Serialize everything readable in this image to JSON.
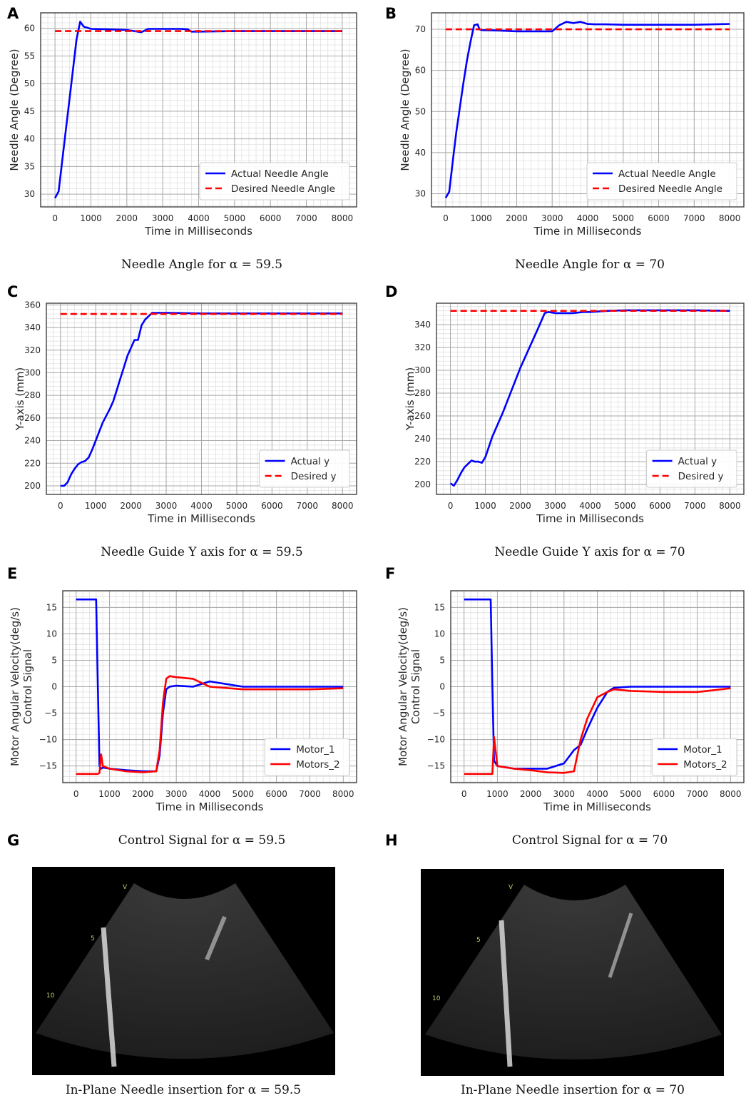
{
  "chart_data": [
    {
      "type": "line",
      "letter": "A",
      "caption": "Needle Angle for α = 59.5",
      "xlabel": "Time in Milliseconds",
      "ylabel": "Needle Angle (Degree)",
      "x": [
        0,
        100,
        200,
        300,
        400,
        500,
        600,
        700,
        800,
        900,
        1000,
        1500,
        2000,
        2400,
        2600,
        3000,
        3500,
        3700,
        3800,
        4000,
        5000,
        6000,
        7000,
        8000
      ],
      "series": [
        {
          "name": "Actual Needle Angle",
          "color": "#0000ff",
          "linestyle": "solid",
          "values": [
            29.3,
            30.5,
            36,
            41.5,
            47,
            52.5,
            58,
            61.2,
            60.3,
            60.1,
            59.9,
            59.8,
            59.7,
            59.3,
            59.9,
            59.9,
            59.9,
            59.8,
            59.4,
            59.4,
            59.5,
            59.5,
            59.5,
            59.5
          ]
        },
        {
          "name": "Desired Needle Angle",
          "color": "#ff0000",
          "linestyle": "dashed",
          "values": [
            59.5,
            59.5,
            59.5,
            59.5,
            59.5,
            59.5,
            59.5,
            59.5,
            59.5,
            59.5,
            59.5,
            59.5,
            59.5,
            59.5,
            59.5,
            59.5,
            59.5,
            59.5,
            59.5,
            59.5,
            59.5,
            59.5,
            59.5,
            59.5
          ]
        }
      ],
      "xlim": [
        -400,
        8400
      ],
      "xticks": [
        0,
        1000,
        2000,
        3000,
        4000,
        5000,
        6000,
        7000,
        8000
      ],
      "ylim": [
        27.7,
        62.8
      ],
      "yticks": [
        30,
        35,
        40,
        45,
        50,
        55,
        60
      ],
      "grid": true,
      "minor_divisions": 5,
      "legend": "lower right"
    },
    {
      "type": "line",
      "letter": "B",
      "caption": "Needle Angle for α = 70",
      "xlabel": "Time in Milliseconds",
      "ylabel": "Needle Angle (Degree)",
      "x": [
        0,
        100,
        200,
        300,
        400,
        500,
        600,
        700,
        800,
        900,
        950,
        1000,
        1500,
        2000,
        2500,
        3000,
        3200,
        3400,
        3600,
        3800,
        4000,
        4200,
        4500,
        5000,
        6000,
        7000,
        8000
      ],
      "series": [
        {
          "name": "Actual Needle Angle",
          "color": "#0000ff",
          "linestyle": "solid",
          "values": [
            29,
            30.5,
            38,
            45,
            51,
            57,
            62.5,
            67,
            71,
            71.2,
            70,
            69.8,
            69.7,
            69.5,
            69.5,
            69.5,
            71,
            71.8,
            71.5,
            71.8,
            71.3,
            71.2,
            71.2,
            71.1,
            71.1,
            71.1,
            71.3
          ]
        },
        {
          "name": "Desired Needle Angle",
          "color": "#ff0000",
          "linestyle": "dashed",
          "values": [
            70,
            70,
            70,
            70,
            70,
            70,
            70,
            70,
            70,
            70,
            70,
            70,
            70,
            70,
            70,
            70,
            70,
            70,
            70,
            70,
            70,
            70,
            70,
            70,
            70,
            70,
            70
          ]
        }
      ],
      "xlim": [
        -400,
        8400
      ],
      "xticks": [
        0,
        1000,
        2000,
        3000,
        4000,
        5000,
        6000,
        7000,
        8000
      ],
      "ylim": [
        26.8,
        74
      ],
      "yticks": [
        30,
        40,
        50,
        60,
        70
      ],
      "grid": true,
      "minor_divisions": 5,
      "legend": "lower right"
    },
    {
      "type": "line",
      "letter": "C",
      "caption": "Needle Guide Y axis for α = 59.5",
      "xlabel": "Time in Milliseconds",
      "ylabel": "Y-axis (mm)",
      "x": [
        0,
        100,
        200,
        300,
        400,
        500,
        600,
        700,
        800,
        900,
        1000,
        1200,
        1400,
        1500,
        1600,
        1700,
        1800,
        1900,
        2000,
        2100,
        2200,
        2300,
        2400,
        2500,
        2600,
        2700,
        3000,
        4000,
        5000,
        6000,
        7000,
        8000
      ],
      "series": [
        {
          "name": "Actual y",
          "color": "#0000ff",
          "linestyle": "solid",
          "values": [
            200,
            200,
            203,
            210,
            215,
            219,
            221,
            222,
            225,
            232,
            240,
            256,
            268,
            275,
            285,
            295,
            305,
            315,
            322,
            329,
            329,
            342,
            347,
            350,
            353,
            353,
            353,
            352.5,
            352.5,
            352.5,
            352.5,
            352.5
          ]
        },
        {
          "name": "Desired y",
          "color": "#ff0000",
          "linestyle": "dashed",
          "values": [
            352,
            352,
            352,
            352,
            352,
            352,
            352,
            352,
            352,
            352,
            352,
            352,
            352,
            352,
            352,
            352,
            352,
            352,
            352,
            352,
            352,
            352,
            352,
            352,
            352,
            352,
            352,
            352,
            352,
            352,
            352,
            352
          ]
        }
      ],
      "xlim": [
        -400,
        8400
      ],
      "xticks": [
        0,
        1000,
        2000,
        3000,
        4000,
        5000,
        6000,
        7000,
        8000
      ],
      "ylim": [
        192.4,
        361.5
      ],
      "yticks": [
        200,
        220,
        240,
        260,
        280,
        300,
        320,
        340,
        360
      ],
      "grid": true,
      "minor_divisions": 5,
      "legend": "lower right"
    },
    {
      "type": "line",
      "letter": "D",
      "caption": "Needle Guide Y axis for α = 70",
      "xlabel": "Time in Milliseconds",
      "ylabel": "Y-axis (mm)",
      "x": [
        0,
        100,
        200,
        300,
        400,
        500,
        600,
        700,
        800,
        900,
        1000,
        1200,
        1500,
        2000,
        2500,
        2700,
        2800,
        3000,
        3500,
        3800,
        4000,
        4500,
        5000,
        6000,
        7000,
        8000
      ],
      "series": [
        {
          "name": "Actual y",
          "color": "#0000ff",
          "linestyle": "solid",
          "values": [
            201,
            199,
            204,
            210,
            215,
            218,
            221,
            220,
            220,
            219,
            224,
            242,
            263,
            302,
            336,
            350,
            351,
            350,
            350,
            351,
            351,
            352,
            352.5,
            352.5,
            352.5,
            352
          ]
        },
        {
          "name": "Desired y",
          "color": "#ff0000",
          "linestyle": "dashed",
          "values": [
            352,
            352,
            352,
            352,
            352,
            352,
            352,
            352,
            352,
            352,
            352,
            352,
            352,
            352,
            352,
            352,
            352,
            352,
            352,
            352,
            352,
            352,
            352,
            352,
            352,
            352
          ]
        }
      ],
      "xlim": [
        -400,
        8400
      ],
      "xticks": [
        0,
        1000,
        2000,
        3000,
        4000,
        5000,
        6000,
        7000,
        8000
      ],
      "ylim": [
        191.3,
        358.7
      ],
      "yticks": [
        200,
        220,
        240,
        260,
        280,
        300,
        320,
        340
      ],
      "grid": true,
      "minor_divisions": 5,
      "legend": "lower right"
    },
    {
      "type": "line",
      "letter": "E",
      "caption": "Control Signal for α = 59.5",
      "xlabel": "Time in Milliseconds",
      "ylabel": [
        "Motor Angular Velocity(deg/s)",
        "Control Signal"
      ],
      "x": [
        0,
        600,
        650,
        700,
        750,
        800,
        1000,
        1500,
        2000,
        2400,
        2500,
        2600,
        2700,
        2800,
        3000,
        3500,
        4000,
        5000,
        6000,
        7000,
        8000
      ],
      "series": [
        {
          "name": "Motor_1",
          "color": "#0000ff",
          "linestyle": "solid",
          "values": [
            16.5,
            16.5,
            0,
            -15,
            -15.5,
            -15.3,
            -15.5,
            -15.8,
            -16,
            -16,
            -13,
            -5,
            -0.5,
            0,
            0.2,
            0,
            1,
            0,
            0,
            0,
            0
          ]
        },
        {
          "name": "Motors_2",
          "color": "#ff0000",
          "linestyle": "solid",
          "values": [
            -16.5,
            -16.5,
            -16.5,
            -16.3,
            -12.8,
            -15,
            -15.5,
            -16,
            -16.2,
            -16,
            -12,
            -3,
            1.5,
            2,
            1.8,
            1.5,
            0,
            -0.5,
            -0.5,
            -0.5,
            -0.3
          ]
        }
      ],
      "xlim": [
        -400,
        8400
      ],
      "xticks": [
        0,
        1000,
        2000,
        3000,
        4000,
        5000,
        6000,
        7000,
        8000
      ],
      "ylim": [
        -18.15,
        18.15
      ],
      "yticks": [
        {
          "value": -15,
          "label": "−15"
        },
        {
          "value": -10,
          "label": "−10"
        },
        {
          "value": -5,
          "label": "−5"
        },
        0,
        5,
        10,
        15
      ],
      "grid": true,
      "minor_divisions": 5,
      "legend": "lower right"
    },
    {
      "type": "line",
      "letter": "F",
      "caption": "Control Signal for α = 70",
      "xlabel": "Time in Milliseconds",
      "ylabel": [
        "Motor Angular Velocity(deg/s)",
        "Control Signal"
      ],
      "x": [
        0,
        800,
        850,
        900,
        1000,
        1500,
        2000,
        2500,
        3000,
        3300,
        3500,
        3700,
        4000,
        4300,
        4500,
        5000,
        6000,
        7000,
        8000
      ],
      "series": [
        {
          "name": "Motor_1",
          "color": "#0000ff",
          "linestyle": "solid",
          "values": [
            16.5,
            16.5,
            0,
            -14,
            -15,
            -15.5,
            -15.5,
            -15.5,
            -14.5,
            -12,
            -11,
            -8,
            -4,
            -1,
            -0.2,
            0,
            0,
            0,
            0
          ]
        },
        {
          "name": "Motors_2",
          "color": "#ff0000",
          "linestyle": "solid",
          "values": [
            -16.5,
            -16.5,
            -16.5,
            -9.5,
            -15,
            -15.5,
            -15.8,
            -16.2,
            -16.3,
            -16,
            -10,
            -6,
            -2,
            -1,
            -0.5,
            -0.8,
            -1,
            -1,
            -0.3
          ]
        }
      ],
      "xlim": [
        -400,
        8400
      ],
      "xticks": [
        0,
        1000,
        2000,
        3000,
        4000,
        5000,
        6000,
        7000,
        8000
      ],
      "ylim": [
        -18.15,
        18.15
      ],
      "yticks": [
        {
          "value": -15,
          "label": "−15"
        },
        {
          "value": -10,
          "label": "−10"
        },
        {
          "value": -5,
          "label": "−5"
        },
        0,
        5,
        10,
        15
      ],
      "grid": true,
      "minor_divisions": 5,
      "legend": "lower right"
    }
  ],
  "images": [
    {
      "letter": "G",
      "caption": "In-Plane Needle insertion for α = 59.5",
      "markers": [
        "V",
        "5",
        "10"
      ]
    },
    {
      "letter": "H",
      "caption": "In-Plane Needle insertion for α = 70",
      "markers": [
        "V",
        "5",
        "10"
      ]
    }
  ]
}
